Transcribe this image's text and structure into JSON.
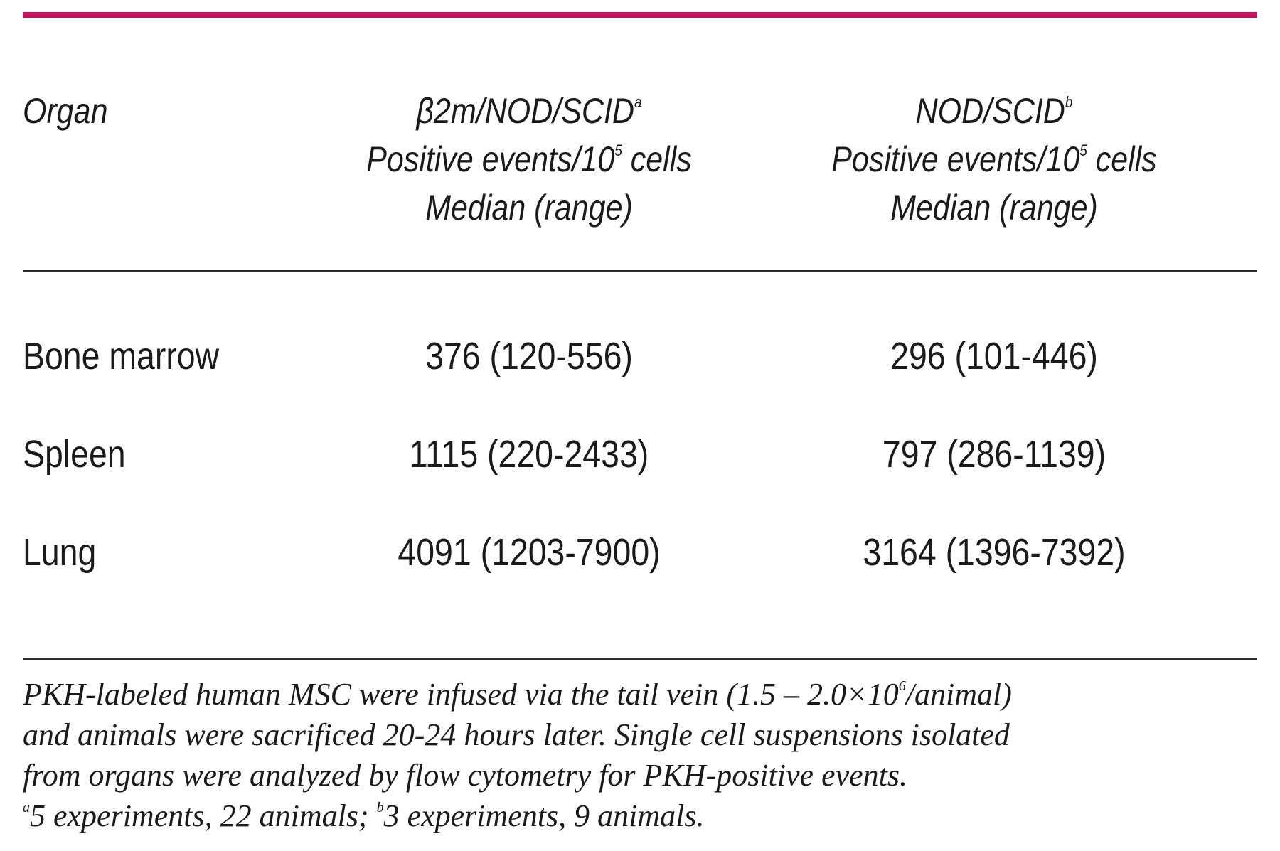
{
  "colors": {
    "top_rule": "#c8105f",
    "rules": "#2a2a2a",
    "text": "#1a1a1a"
  },
  "header": {
    "organ": "Organ",
    "col1": {
      "strain": "β2m/NOD/SCID",
      "strain_sup": "a",
      "line2_pre": "Positive events/10",
      "line2_sup": "5",
      "line2_post": " cells",
      "line3": "Median (range)"
    },
    "col2": {
      "strain": "NOD/SCID",
      "strain_sup": "b",
      "line2_pre": "Positive events/10",
      "line2_sup": "5",
      "line2_post": " cells",
      "line3": "Median (range)"
    }
  },
  "rows": [
    {
      "organ": "Bone marrow",
      "b2m": "376 (120-556)",
      "nod": "296 (101-446)"
    },
    {
      "organ": "Spleen",
      "b2m": "1115 (220-2433)",
      "nod": "797 (286-1139)"
    },
    {
      "organ": "Lung",
      "b2m": "4091 (1203-7900)",
      "nod": "3164 (1396-7392)"
    }
  ],
  "footnote": {
    "line1_pre": "PKH-labeled human MSC were infused via the tail vein (1.5 – 2.0×10",
    "line1_sup": "6",
    "line1_post": "/animal)",
    "line2": "and animals were sacrificed 20-24 hours later. Single cell suspensions isolated",
    "line3": "from organs were analyzed by flow cytometry for PKH-positive events.",
    "line4_sup_a": "a",
    "line4_a": "5 experiments, 22 animals; ",
    "line4_sup_b": "b",
    "line4_b": "3 experiments, 9 animals."
  }
}
